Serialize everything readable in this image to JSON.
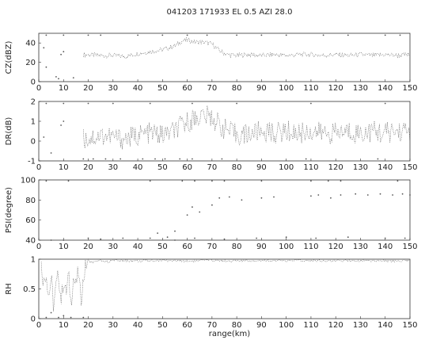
{
  "chart_data": {
    "title": "041203 171933   EL 0.5    AZI 28.0",
    "type": "scatter",
    "xlabel": "range(km)",
    "xlim": [
      0,
      150
    ],
    "x_ticks": [
      "0",
      "10",
      "20",
      "30",
      "40",
      "50",
      "60",
      "70",
      "80",
      "90",
      "100",
      "110",
      "120",
      "130",
      "140",
      "150"
    ],
    "panels": [
      {
        "name": "cz",
        "ylabel": "CZ(dBZ)",
        "ylim": [
          0,
          50
        ],
        "y_ticks": [
          "0",
          "20",
          "40"
        ],
        "profile": [
          [
            18,
            28
          ],
          [
            25,
            27
          ],
          [
            30,
            27
          ],
          [
            35,
            26
          ],
          [
            40,
            29
          ],
          [
            45,
            31
          ],
          [
            50,
            33
          ],
          [
            55,
            37
          ],
          [
            58,
            42
          ],
          [
            60,
            43
          ],
          [
            63,
            41
          ],
          [
            66,
            41
          ],
          [
            70,
            39
          ],
          [
            73,
            32
          ],
          [
            76,
            28
          ],
          [
            80,
            27
          ],
          [
            85,
            28
          ],
          [
            90,
            27
          ],
          [
            95,
            28
          ],
          [
            100,
            27
          ],
          [
            105,
            28
          ],
          [
            110,
            28
          ],
          [
            115,
            27
          ],
          [
            120,
            28
          ],
          [
            125,
            27
          ],
          [
            130,
            28
          ],
          [
            135,
            27
          ],
          [
            140,
            28
          ],
          [
            145,
            27
          ],
          [
            150,
            28
          ]
        ],
        "sparse": [
          [
            3,
            48
          ],
          [
            10,
            48
          ],
          [
            20,
            48
          ],
          [
            25,
            48
          ],
          [
            40,
            48
          ],
          [
            50,
            48
          ],
          [
            60,
            48
          ],
          [
            68,
            48
          ],
          [
            80,
            48
          ],
          [
            90,
            48
          ],
          [
            100,
            48
          ],
          [
            115,
            48
          ],
          [
            125,
            48
          ],
          [
            140,
            48
          ],
          [
            146,
            48
          ],
          [
            9,
            28
          ],
          [
            10,
            31
          ],
          [
            2,
            35
          ],
          [
            3,
            15
          ],
          [
            7,
            5
          ],
          [
            8,
            3
          ],
          [
            14,
            4
          ]
        ]
      },
      {
        "name": "dr",
        "ylabel": "DR(dB)",
        "ylim": [
          -1,
          2
        ],
        "y_ticks": [
          "-1",
          "0",
          "1",
          "2"
        ],
        "profile": [
          [
            18,
            0.1
          ],
          [
            22,
            0.2
          ],
          [
            26,
            0.3
          ],
          [
            30,
            0.2
          ],
          [
            35,
            0.1
          ],
          [
            40,
            0.3
          ],
          [
            45,
            0.4
          ],
          [
            50,
            0.3
          ],
          [
            55,
            0.5
          ],
          [
            58,
            0.8
          ],
          [
            62,
            1.1
          ],
          [
            66,
            1.3
          ],
          [
            70,
            1.2
          ],
          [
            74,
            0.7
          ],
          [
            78,
            0.4
          ],
          [
            82,
            0.3
          ],
          [
            86,
            0.4
          ],
          [
            90,
            0.5
          ],
          [
            95,
            0.4
          ],
          [
            100,
            0.5
          ],
          [
            105,
            0.4
          ],
          [
            110,
            0.5
          ],
          [
            115,
            0.4
          ],
          [
            120,
            0.4
          ],
          [
            125,
            0.5
          ],
          [
            130,
            0.4
          ],
          [
            135,
            0.5
          ],
          [
            140,
            0.4
          ],
          [
            145,
            0.5
          ],
          [
            150,
            0.5
          ]
        ],
        "sparse": [
          [
            3,
            1.9
          ],
          [
            10,
            1.9
          ],
          [
            20,
            1.9
          ],
          [
            30,
            1.9
          ],
          [
            45,
            1.9
          ],
          [
            62,
            1.9
          ],
          [
            80,
            1.9
          ],
          [
            110,
            1.9
          ],
          [
            140,
            1.9
          ],
          [
            9,
            0.8
          ],
          [
            10,
            1.0
          ],
          [
            2,
            0.2
          ],
          [
            5,
            -0.6
          ],
          [
            18,
            -0.9
          ],
          [
            22,
            -0.9
          ],
          [
            27,
            -0.9
          ],
          [
            33,
            -0.9
          ],
          [
            42,
            -0.9
          ],
          [
            47,
            -0.9
          ],
          [
            51,
            -0.9
          ],
          [
            57,
            -0.9
          ],
          [
            62,
            -0.9
          ],
          [
            74,
            -0.9
          ],
          [
            108,
            -0.9
          ],
          [
            137,
            -0.9
          ]
        ]
      },
      {
        "name": "psi",
        "ylabel": "PSI(degree)",
        "ylim": [
          40,
          100
        ],
        "y_ticks": [
          "40",
          "60",
          "80",
          "100"
        ],
        "sparse": [
          [
            3,
            99
          ],
          [
            12,
            99
          ],
          [
            45,
            99
          ],
          [
            58,
            99
          ],
          [
            63,
            99
          ],
          [
            70,
            99
          ],
          [
            75,
            99
          ],
          [
            90,
            99
          ],
          [
            110,
            99
          ],
          [
            117,
            99
          ],
          [
            122,
            99
          ],
          [
            145,
            99
          ],
          [
            60,
            65
          ],
          [
            62,
            73
          ],
          [
            65,
            68
          ],
          [
            70,
            75
          ],
          [
            73,
            82
          ],
          [
            77,
            83
          ],
          [
            82,
            80
          ],
          [
            90,
            82
          ],
          [
            95,
            83
          ],
          [
            110,
            84
          ],
          [
            113,
            85
          ],
          [
            118,
            82
          ],
          [
            122,
            85
          ],
          [
            128,
            86
          ],
          [
            133,
            85
          ],
          [
            138,
            86
          ],
          [
            143,
            85
          ],
          [
            147,
            86
          ],
          [
            150,
            85
          ],
          [
            5,
            40
          ],
          [
            10,
            40
          ],
          [
            20,
            42
          ],
          [
            25,
            41
          ],
          [
            34,
            42
          ],
          [
            45,
            42
          ],
          [
            52,
            43
          ],
          [
            55,
            40
          ],
          [
            63,
            42
          ],
          [
            75,
            41
          ],
          [
            88,
            42
          ],
          [
            100,
            43
          ],
          [
            112,
            42
          ],
          [
            125,
            43
          ],
          [
            140,
            42
          ],
          [
            148,
            42
          ],
          [
            48,
            47
          ],
          [
            55,
            49
          ]
        ]
      },
      {
        "name": "rh",
        "ylabel": "RH",
        "ylim": [
          0,
          1
        ],
        "y_ticks": [
          "0",
          "0.5",
          "1"
        ],
        "profile": [
          [
            1,
            0.9
          ],
          [
            2,
            0.6
          ],
          [
            3,
            0.8
          ],
          [
            4,
            0.35
          ],
          [
            5,
            0.7
          ],
          [
            6,
            0.18
          ],
          [
            7,
            0.55
          ],
          [
            8,
            0.75
          ],
          [
            9,
            0.3
          ],
          [
            10,
            0.65
          ],
          [
            11,
            0.4
          ],
          [
            12,
            0.75
          ],
          [
            13,
            0.25
          ],
          [
            14,
            0.7
          ],
          [
            15,
            0.55
          ],
          [
            16,
            0.8
          ],
          [
            17,
            0.3
          ],
          [
            18,
            0.65
          ],
          [
            19,
            0.9
          ],
          [
            20,
            0.96
          ],
          [
            22,
            0.95
          ],
          [
            25,
            0.97
          ],
          [
            28,
            0.96
          ],
          [
            30,
            0.98
          ],
          [
            40,
            0.97
          ],
          [
            50,
            0.98
          ],
          [
            60,
            0.97
          ],
          [
            70,
            0.98
          ],
          [
            80,
            0.97
          ],
          [
            90,
            0.98
          ],
          [
            100,
            0.97
          ],
          [
            110,
            0.98
          ],
          [
            120,
            0.97
          ],
          [
            130,
            0.98
          ],
          [
            140,
            0.97
          ],
          [
            150,
            0.98
          ]
        ],
        "sparse": [
          [
            3,
            0.02
          ],
          [
            8,
            0.02
          ],
          [
            13,
            0.02
          ],
          [
            18,
            0.02
          ],
          [
            10,
            0.05
          ],
          [
            5,
            0.1
          ]
        ]
      }
    ],
    "grid": false,
    "legend": "none"
  }
}
